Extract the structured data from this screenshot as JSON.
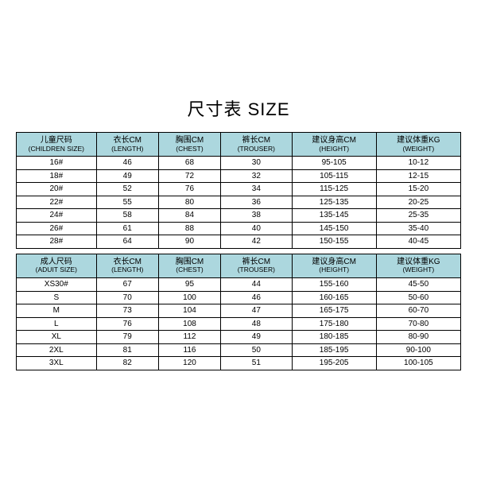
{
  "title": "尺寸表 SIZE",
  "colors": {
    "header_bg": "#acd7de",
    "border": "#000000",
    "text": "#000000",
    "background": "#ffffff"
  },
  "columns_children": [
    {
      "cn": "儿童尺码",
      "en": "(CHILDREN SIZE)"
    },
    {
      "cn": "衣长CM",
      "en": "(LENGTH)"
    },
    {
      "cn": "胸围CM",
      "en": "(CHEST)"
    },
    {
      "cn": "裤长CM",
      "en": "(TROUSER)"
    },
    {
      "cn": "建议身高CM",
      "en": "(HEIGHT)"
    },
    {
      "cn": "建议体重KG",
      "en": "(WEIGHT)"
    }
  ],
  "rows_children": [
    [
      "16#",
      "46",
      "68",
      "30",
      "95-105",
      "10-12"
    ],
    [
      "18#",
      "49",
      "72",
      "32",
      "105-115",
      "12-15"
    ],
    [
      "20#",
      "52",
      "76",
      "34",
      "115-125",
      "15-20"
    ],
    [
      "22#",
      "55",
      "80",
      "36",
      "125-135",
      "20-25"
    ],
    [
      "24#",
      "58",
      "84",
      "38",
      "135-145",
      "25-35"
    ],
    [
      "26#",
      "61",
      "88",
      "40",
      "145-150",
      "35-40"
    ],
    [
      "28#",
      "64",
      "90",
      "42",
      "150-155",
      "40-45"
    ]
  ],
  "columns_adult": [
    {
      "cn": "成人尺码",
      "en": "(ADUIT SIZE)"
    },
    {
      "cn": "衣长CM",
      "en": "(LENGTH)"
    },
    {
      "cn": "胸围CM",
      "en": "(CHEST)"
    },
    {
      "cn": "裤长CM",
      "en": "(TROUSER)"
    },
    {
      "cn": "建议身高CM",
      "en": "(HEIGHT)"
    },
    {
      "cn": "建议体重KG",
      "en": "(WEIGHT)"
    }
  ],
  "rows_adult": [
    [
      "XS30#",
      "67",
      "95",
      "44",
      "155-160",
      "45-50"
    ],
    [
      "S",
      "70",
      "100",
      "46",
      "160-165",
      "50-60"
    ],
    [
      "M",
      "73",
      "104",
      "47",
      "165-175",
      "60-70"
    ],
    [
      "L",
      "76",
      "108",
      "48",
      "175-180",
      "70-80"
    ],
    [
      "XL",
      "79",
      "112",
      "49",
      "180-185",
      "80-90"
    ],
    [
      "2XL",
      "81",
      "116",
      "50",
      "185-195",
      "90-100"
    ],
    [
      "3XL",
      "82",
      "120",
      "51",
      "195-205",
      "100-105"
    ]
  ]
}
